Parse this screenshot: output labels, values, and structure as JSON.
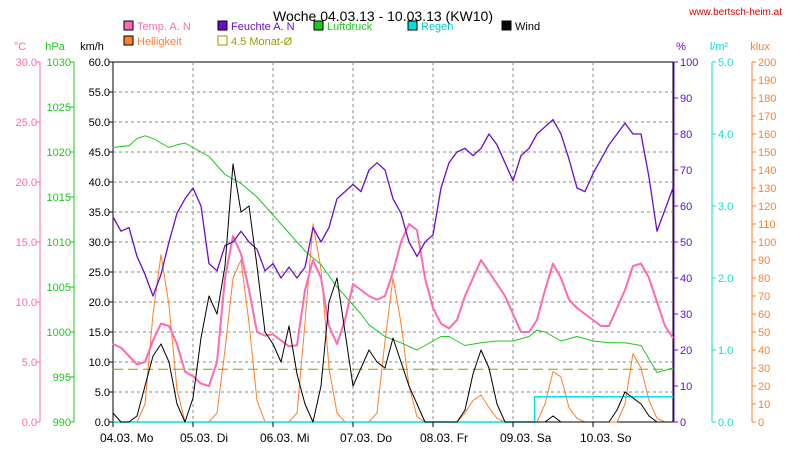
{
  "site": "www.bertsch-heim.at",
  "chart_data": {
    "type": "line",
    "title": "Woche 04.03.13 - 10.03.13 (KW10)",
    "x_labels": [
      "04.03.  Mo",
      "05.03.  Di",
      "06.03.  Mi",
      "07.03.  Do",
      "08.03.  Fr",
      "09.03.  Sa",
      "10.03.  So"
    ],
    "grid": true,
    "legend": [
      {
        "name": "Temp. A. N",
        "color": "#ff69b4"
      },
      {
        "name": "Helligkeit",
        "color": "#ff7f27"
      },
      {
        "name": "Feuchte A. N",
        "color": "#6a0dcd"
      },
      {
        "name": "4.5 Monat-Ø",
        "color": "#999900"
      },
      {
        "name": "Luftdruck",
        "color": "#1ec81e"
      },
      {
        "name": "Regen",
        "color": "#00e0e0"
      },
      {
        "name": "Wind",
        "color": "#000000"
      }
    ],
    "axes": {
      "temp": {
        "unit": "°C",
        "min": 0,
        "max": 30,
        "ticks": [
          "0.0",
          "5.0",
          "10.0",
          "15.0",
          "20.0",
          "25.0",
          "30.0"
        ],
        "color": "#ff69b4"
      },
      "pressure": {
        "unit": "hPa",
        "min": 990,
        "max": 1030,
        "ticks": [
          "990",
          "995",
          "1000",
          "1005",
          "1010",
          "1015",
          "1020",
          "1025",
          "1030"
        ],
        "color": "#1ec81e"
      },
      "wind": {
        "unit": "km/h",
        "min": 0,
        "max": 60,
        "ticks": [
          "0.0",
          "5.0",
          "10.0",
          "15.0",
          "20.0",
          "25.0",
          "30.0",
          "35.0",
          "40.0",
          "45.0",
          "50.0",
          "55.0",
          "60.0"
        ],
        "color": "#000000"
      },
      "humidity": {
        "unit": "%",
        "min": 0,
        "max": 100,
        "ticks": [
          "0",
          "10",
          "20",
          "30",
          "40",
          "50",
          "60",
          "70",
          "80",
          "90",
          "100"
        ],
        "color": "#6a0dcd"
      },
      "rain": {
        "unit": "l/m²",
        "min": 0,
        "max": 5,
        "ticks": [
          "0.0",
          "1.0",
          "2.0",
          "3.0",
          "4.0",
          "5.0"
        ],
        "color": "#00e0e0"
      },
      "light": {
        "unit": "klux",
        "min": 0,
        "max": 200,
        "ticks": [
          "0",
          "10",
          "20",
          "30",
          "40",
          "50",
          "60",
          "70",
          "80",
          "90",
          "100",
          "110",
          "120",
          "130",
          "140",
          "150",
          "160",
          "170",
          "180",
          "190",
          "200"
        ],
        "color": "#ff7f27"
      }
    },
    "x_range": [
      0,
      7
    ],
    "series": [
      {
        "name": "Temp. A. N",
        "axis": "temp",
        "color": "#ff69b4",
        "x": [
          0,
          0.1,
          0.2,
          0.3,
          0.4,
          0.5,
          0.6,
          0.7,
          0.8,
          0.9,
          1.0,
          1.1,
          1.2,
          1.3,
          1.4,
          1.5,
          1.6,
          1.7,
          1.8,
          1.9,
          2.0,
          2.1,
          2.2,
          2.3,
          2.4,
          2.5,
          2.6,
          2.7,
          2.8,
          2.9,
          3.0,
          3.1,
          3.2,
          3.3,
          3.4,
          3.5,
          3.6,
          3.7,
          3.8,
          3.9,
          4.0,
          4.1,
          4.2,
          4.3,
          4.4,
          4.5,
          4.6,
          4.7,
          4.8,
          4.9,
          5.0,
          5.1,
          5.2,
          5.3,
          5.4,
          5.5,
          5.6,
          5.7,
          5.8,
          5.9,
          6.0,
          6.1,
          6.2,
          6.3,
          6.4,
          6.5,
          6.6,
          6.7,
          6.8,
          6.9,
          7.0
        ],
        "y": [
          6.5,
          6.2,
          5.5,
          4.8,
          5.0,
          6.8,
          8.2,
          8.0,
          6.5,
          4.2,
          3.8,
          3.2,
          3.0,
          5.0,
          12.0,
          15.5,
          14.0,
          11.0,
          7.5,
          7.2,
          7.3,
          6.8,
          6.3,
          6.4,
          11.0,
          13.5,
          12.0,
          8.0,
          6.5,
          8.5,
          11.5,
          11.0,
          10.5,
          10.2,
          10.5,
          12.5,
          15.0,
          16.5,
          16.0,
          12.0,
          9.5,
          8.2,
          7.8,
          8.5,
          10.5,
          12.0,
          13.5,
          12.5,
          11.5,
          10.5,
          9.0,
          7.5,
          7.5,
          8.5,
          11.0,
          13.2,
          12.0,
          10.2,
          9.5,
          9.0,
          8.5,
          8.0,
          8.0,
          9.5,
          11.0,
          13.0,
          13.2,
          12.0,
          10.0,
          8.0,
          7.0
        ]
      },
      {
        "name": "Feuchte A. N",
        "axis": "humidity",
        "color": "#6a0dcd",
        "x": [
          0,
          0.1,
          0.2,
          0.3,
          0.4,
          0.5,
          0.6,
          0.7,
          0.8,
          0.9,
          1.0,
          1.1,
          1.2,
          1.3,
          1.4,
          1.5,
          1.6,
          1.7,
          1.8,
          1.9,
          2.0,
          2.1,
          2.2,
          2.3,
          2.4,
          2.5,
          2.6,
          2.7,
          2.8,
          2.9,
          3.0,
          3.1,
          3.2,
          3.3,
          3.4,
          3.5,
          3.6,
          3.7,
          3.8,
          3.9,
          4.0,
          4.1,
          4.2,
          4.3,
          4.4,
          4.5,
          4.6,
          4.7,
          4.8,
          4.9,
          5.0,
          5.1,
          5.2,
          5.3,
          5.4,
          5.5,
          5.6,
          5.7,
          5.8,
          5.9,
          6.0,
          6.1,
          6.2,
          6.3,
          6.4,
          6.5,
          6.6,
          6.7,
          6.8,
          6.9,
          7.0
        ],
        "y": [
          57,
          53,
          54,
          46,
          41,
          35,
          41,
          50,
          58,
          62,
          65,
          60,
          44,
          42,
          49,
          50,
          53,
          50,
          48,
          42,
          44,
          40,
          43,
          40,
          43,
          54,
          50,
          54,
          62,
          64,
          66,
          64,
          70,
          72,
          70,
          62,
          58,
          50,
          46,
          50,
          52,
          65,
          72,
          75,
          76,
          74,
          76,
          80,
          77,
          72,
          67,
          74,
          76,
          80,
          82,
          84,
          80,
          73,
          65,
          64,
          69,
          73,
          77,
          80,
          83,
          80,
          80,
          68,
          53,
          59,
          65
        ]
      },
      {
        "name": "Luftdruck",
        "axis": "pressure",
        "color": "#1ec81e",
        "x": [
          0,
          0.2,
          0.3,
          0.4,
          0.5,
          0.6,
          0.7,
          0.8,
          0.9,
          1.0,
          1.2,
          1.3,
          1.4,
          1.6,
          1.8,
          2.0,
          2.1,
          2.2,
          2.4,
          2.6,
          2.8,
          3.0,
          3.1,
          3.2,
          3.4,
          3.6,
          3.8,
          4.0,
          4.1,
          4.2,
          4.4,
          4.6,
          4.8,
          5.0,
          5.2,
          5.3,
          5.4,
          5.6,
          5.8,
          6.0,
          6.2,
          6.4,
          6.6,
          6.8,
          7.0
        ],
        "y": [
          1020.5,
          1020.7,
          1021.5,
          1021.8,
          1021.5,
          1021.0,
          1020.5,
          1020.8,
          1021.0,
          1020.5,
          1019.5,
          1018.5,
          1017.5,
          1016.5,
          1015.0,
          1013.0,
          1012.0,
          1011.0,
          1009.0,
          1007.5,
          1005.0,
          1003.0,
          1002.0,
          1000.8,
          999.5,
          998.8,
          998.0,
          999.0,
          999.5,
          999.5,
          998.5,
          998.8,
          999.0,
          999.0,
          999.5,
          1000.2,
          1000.0,
          999.0,
          999.5,
          999.0,
          998.8,
          998.8,
          998.5,
          995.5,
          996.0
        ]
      },
      {
        "name": "Wind",
        "axis": "wind",
        "color": "#000000",
        "x": [
          0,
          0.1,
          0.2,
          0.3,
          0.4,
          0.5,
          0.6,
          0.7,
          0.8,
          0.9,
          1.0,
          1.1,
          1.2,
          1.3,
          1.4,
          1.5,
          1.6,
          1.7,
          1.8,
          1.9,
          2.0,
          2.1,
          2.2,
          2.3,
          2.4,
          2.5,
          2.6,
          2.7,
          2.8,
          2.9,
          3.0,
          3.1,
          3.2,
          3.3,
          3.4,
          3.5,
          3.6,
          3.7,
          3.8,
          3.9,
          4.0,
          4.1,
          4.2,
          4.3,
          4.4,
          4.5,
          4.6,
          4.7,
          4.8,
          4.9,
          5.0,
          5.1,
          5.2,
          5.3,
          5.4,
          5.5,
          5.6,
          5.7,
          5.8,
          5.9,
          6.0,
          6.1,
          6.2,
          6.3,
          6.4,
          6.5,
          6.6,
          6.7,
          6.8,
          6.9,
          7.0
        ],
        "y": [
          1.5,
          0,
          0,
          1,
          6,
          11,
          13,
          10,
          3,
          0,
          4,
          14,
          21,
          18,
          26,
          43,
          35,
          36,
          26,
          15,
          13,
          10,
          16,
          8,
          3,
          0,
          6,
          20,
          24,
          15,
          6,
          9,
          12,
          10,
          9,
          14,
          10,
          6,
          3,
          0,
          0,
          0,
          0,
          0,
          2,
          8,
          12,
          9,
          3,
          0,
          0,
          0,
          0,
          0,
          0,
          1,
          0,
          0,
          0,
          0,
          0,
          0,
          0,
          2,
          5,
          4,
          3,
          1,
          0,
          0,
          0
        ]
      },
      {
        "name": "Helligkeit",
        "axis": "light",
        "color": "#ff7f27",
        "x": [
          0,
          0.1,
          0.2,
          0.3,
          0.4,
          0.5,
          0.6,
          0.7,
          0.8,
          0.9,
          1.0,
          1.1,
          1.2,
          1.3,
          1.4,
          1.5,
          1.6,
          1.7,
          1.8,
          1.9,
          2.0,
          2.1,
          2.2,
          2.3,
          2.4,
          2.5,
          2.6,
          2.7,
          2.8,
          2.9,
          3.0,
          3.1,
          3.2,
          3.3,
          3.4,
          3.5,
          3.6,
          3.7,
          3.8,
          3.9,
          4.0,
          4.1,
          4.2,
          4.3,
          4.4,
          4.5,
          4.6,
          4.7,
          4.8,
          4.9,
          5.0,
          5.1,
          5.2,
          5.3,
          5.4,
          5.5,
          5.6,
          5.7,
          5.8,
          5.9,
          6.0,
          6.1,
          6.2,
          6.3,
          6.4,
          6.5,
          6.6,
          6.7,
          6.8,
          6.9,
          7.0
        ],
        "y": [
          0,
          0,
          0,
          0,
          10,
          60,
          93,
          65,
          18,
          0,
          0,
          0,
          0,
          5,
          40,
          80,
          90,
          55,
          12,
          0,
          0,
          0,
          0,
          5,
          55,
          110,
          85,
          30,
          5,
          0,
          0,
          0,
          0,
          5,
          45,
          80,
          55,
          20,
          3,
          0,
          0,
          0,
          0,
          0,
          5,
          12,
          15,
          8,
          2,
          0,
          0,
          0,
          0,
          0,
          10,
          28,
          25,
          8,
          2,
          0,
          0,
          0,
          0,
          0,
          10,
          38,
          30,
          12,
          2,
          0,
          0
        ]
      },
      {
        "name": "Regen",
        "axis": "rain",
        "color": "#00e0e0",
        "x": [
          0,
          5.27,
          5.27,
          7.0
        ],
        "y": [
          0,
          0,
          0.35,
          0.35
        ]
      },
      {
        "name": "4.5 Monat-Ø",
        "axis": "temp",
        "color": "#999900",
        "x": [
          0,
          7
        ],
        "y": [
          4.4,
          4.4
        ]
      }
    ]
  }
}
